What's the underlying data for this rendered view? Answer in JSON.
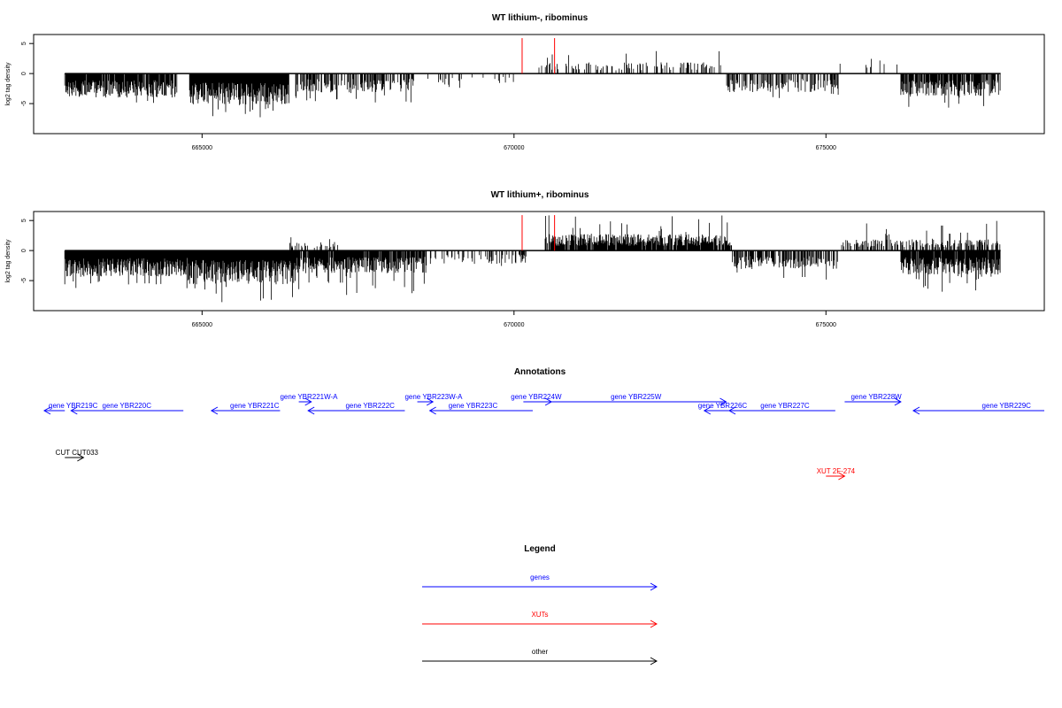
{
  "colors": {
    "genes": "#0000ff",
    "XUTs": "#ff0000",
    "other": "#000000",
    "marker": "#ff0000",
    "bar": "#000000"
  },
  "chart_data": [
    {
      "type": "bar",
      "title": "WT lithium-, ribominus",
      "ylabel": "log2 tag density",
      "xlim": [
        662300,
        678500
      ],
      "ylim": [
        -10,
        6.5
      ],
      "x_ticks": [
        665000,
        670000,
        675000
      ],
      "x_tick_labels": [
        "665000",
        "670000",
        "675000"
      ],
      "y_ticks": [
        -5,
        0,
        5
      ],
      "y_tick_labels": [
        "-5",
        "0",
        "5"
      ],
      "zero_line": true,
      "marker_lines": [
        670130,
        670650
      ],
      "density_profile": [
        {
          "start": 662800,
          "end": 664600,
          "sign": -1,
          "mean": 3.2,
          "max": 5.0,
          "density": 0.9
        },
        {
          "start": 664800,
          "end": 666400,
          "sign": -1,
          "mean": 4.2,
          "max": 7.5,
          "density": 1.0
        },
        {
          "start": 666500,
          "end": 668400,
          "sign": -1,
          "mean": 2.5,
          "max": 5.0,
          "density": 0.6
        },
        {
          "start": 668500,
          "end": 670000,
          "sign": -1,
          "mean": 1.5,
          "max": 3.0,
          "density": 0.12
        },
        {
          "start": 670400,
          "end": 673400,
          "sign": 1,
          "mean": 1.5,
          "max": 4.0,
          "density": 0.25
        },
        {
          "start": 673400,
          "end": 675200,
          "sign": -1,
          "mean": 2.5,
          "max": 4.5,
          "density": 0.5
        },
        {
          "start": 675200,
          "end": 676200,
          "sign": 1,
          "mean": 2.0,
          "max": 3.5,
          "density": 0.08
        },
        {
          "start": 676200,
          "end": 677800,
          "sign": -1,
          "mean": 3.0,
          "max": 6.0,
          "density": 0.85
        }
      ]
    },
    {
      "type": "bar",
      "title": "WT lithium+, ribominus",
      "ylabel": "log2 tag density",
      "xlim": [
        662300,
        678500
      ],
      "ylim": [
        -10,
        6.5
      ],
      "x_ticks": [
        665000,
        670000,
        675000
      ],
      "x_tick_labels": [
        "665000",
        "670000",
        "675000"
      ],
      "y_ticks": [
        -5,
        0,
        5
      ],
      "y_tick_labels": [
        "-5",
        "0",
        "5"
      ],
      "zero_line": true,
      "marker_lines": [
        670130,
        670650
      ],
      "density_profile": [
        {
          "start": 662800,
          "end": 664800,
          "sign": -1,
          "mean": 3.5,
          "max": 6.5,
          "density": 1.0
        },
        {
          "start": 664800,
          "end": 666500,
          "sign": -1,
          "mean": 4.5,
          "max": 9.0,
          "density": 1.0
        },
        {
          "start": 666500,
          "end": 668600,
          "sign": -1,
          "mean": 3.0,
          "max": 7.5,
          "density": 0.9
        },
        {
          "start": 666400,
          "end": 667200,
          "sign": 1,
          "mean": 1.2,
          "max": 2.8,
          "density": 0.3
        },
        {
          "start": 668600,
          "end": 670200,
          "sign": -1,
          "mean": 1.8,
          "max": 3.5,
          "density": 0.3
        },
        {
          "start": 670500,
          "end": 673500,
          "sign": 1,
          "mean": 2.2,
          "max": 6.0,
          "density": 0.9
        },
        {
          "start": 673500,
          "end": 675200,
          "sign": -1,
          "mean": 2.5,
          "max": 5.0,
          "density": 0.6
        },
        {
          "start": 675200,
          "end": 677800,
          "sign": 1,
          "mean": 1.5,
          "max": 5.0,
          "density": 0.5
        },
        {
          "start": 676200,
          "end": 677800,
          "sign": -1,
          "mean": 3.2,
          "max": 7.0,
          "density": 0.95
        }
      ]
    }
  ],
  "annotations": {
    "title": "Annotations",
    "features": [
      {
        "label": "gene YBR219C",
        "kind": "genes",
        "start": 662150,
        "end": 662800,
        "strand": "-",
        "row": 2,
        "label_x": 662150
      },
      {
        "label": "gene YBR220C",
        "kind": "genes",
        "start": 662900,
        "end": 664700,
        "strand": "-",
        "row": 2,
        "label_x": 663400
      },
      {
        "label": "gene YBR221C",
        "kind": "genes",
        "start": 665150,
        "end": 666250,
        "strand": "-",
        "row": 2,
        "label_x": 665450
      },
      {
        "label": "gene YBR221W-A",
        "kind": "genes",
        "start": 666550,
        "end": 666750,
        "strand": "+",
        "row": 1,
        "label_x": 666250
      },
      {
        "label": "gene YBR222C",
        "kind": "genes",
        "start": 666700,
        "end": 668250,
        "strand": "-",
        "row": 2,
        "label_x": 667300
      },
      {
        "label": "gene YBR223W-A",
        "kind": "genes",
        "start": 668450,
        "end": 668700,
        "strand": "+",
        "row": 1,
        "label_x": 668250
      },
      {
        "label": "gene YBR223C",
        "kind": "genes",
        "start": 668650,
        "end": 670300,
        "strand": "-",
        "row": 2,
        "label_x": 668950
      },
      {
        "label": "gene YBR224W",
        "kind": "genes",
        "start": 670150,
        "end": 670600,
        "strand": "+",
        "row": 1,
        "label_x": 669950
      },
      {
        "label": "gene YBR225W",
        "kind": "genes",
        "start": 670600,
        "end": 673400,
        "strand": "+",
        "row": 1,
        "label_x": 671550
      },
      {
        "label": "gene YBR226C",
        "kind": "genes",
        "start": 673050,
        "end": 673500,
        "strand": "-",
        "row": 2,
        "label_x": 672950
      },
      {
        "label": "gene YBR227C",
        "kind": "genes",
        "start": 673450,
        "end": 675150,
        "strand": "-",
        "row": 2,
        "label_x": 673950
      },
      {
        "label": "gene YBR228W",
        "kind": "genes",
        "start": 675300,
        "end": 676200,
        "strand": "+",
        "row": 1,
        "label_x": 675400
      },
      {
        "label": "gene YBR229C",
        "kind": "genes",
        "start": 676400,
        "end": 678500,
        "strand": "-",
        "row": 2,
        "label_x": 677500
      },
      {
        "label": "CUT CUT033",
        "kind": "other",
        "start": 662800,
        "end": 663100,
        "strand": "+",
        "row": 3,
        "label_x": 662650
      },
      {
        "label": "XUT 2F-274",
        "kind": "XUTs",
        "start": 675000,
        "end": 675300,
        "strand": "+",
        "row": 4,
        "label_x": 674850
      }
    ]
  },
  "legend": {
    "title": "Legend",
    "items": [
      {
        "label": "genes",
        "kind": "genes"
      },
      {
        "label": "XUTs",
        "kind": "XUTs"
      },
      {
        "label": "other",
        "kind": "other"
      }
    ]
  }
}
